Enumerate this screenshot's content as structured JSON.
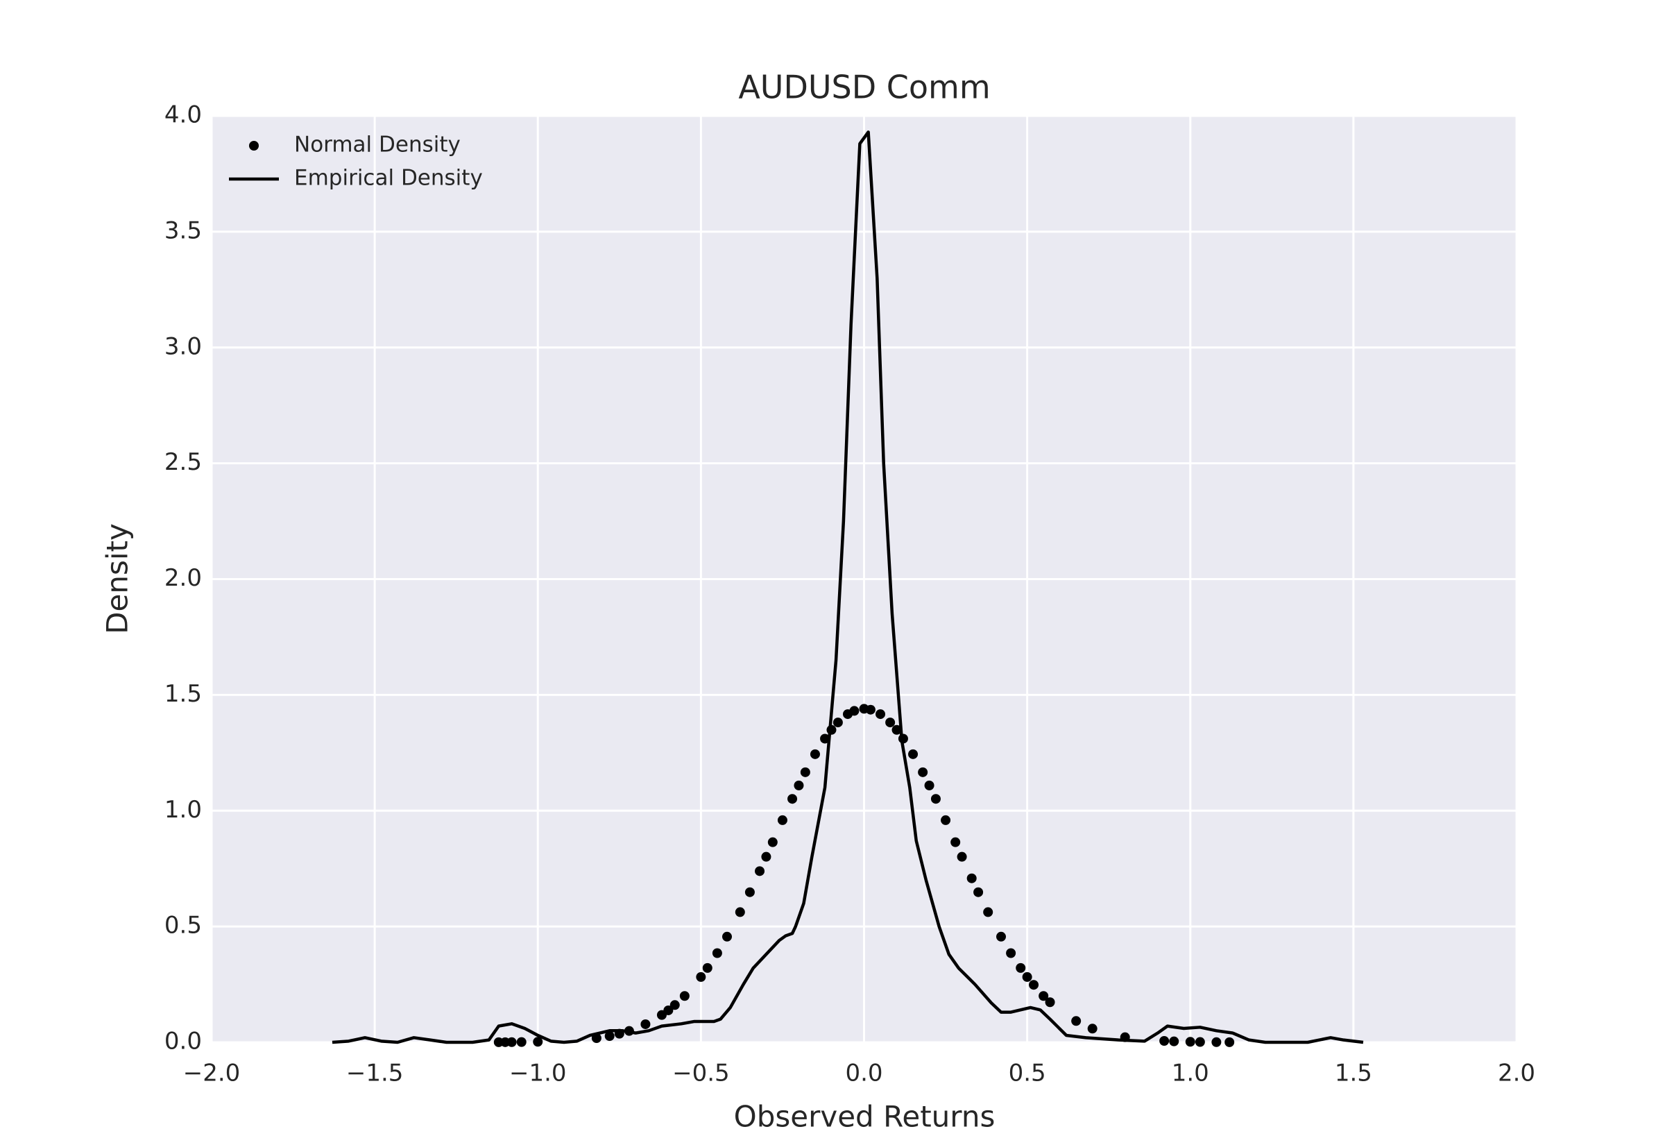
{
  "chart_data": {
    "type": "line",
    "title": "AUDUSD Comm",
    "x_label": "Observed Returns",
    "y_label": "Density",
    "xlim": [
      -2,
      2
    ],
    "ylim": [
      0,
      4
    ],
    "xticks": [
      {
        "value": -2,
        "label": "−2.0"
      },
      {
        "value": -1.5,
        "label": "−1.5"
      },
      {
        "value": -1,
        "label": "−1.0"
      },
      {
        "value": -0.5,
        "label": "−0.5"
      },
      {
        "value": 0,
        "label": "0.0"
      },
      {
        "value": 0.5,
        "label": "0.5"
      },
      {
        "value": 1,
        "label": "1.0"
      },
      {
        "value": 1.5,
        "label": "1.5"
      },
      {
        "value": 2,
        "label": "2.0"
      }
    ],
    "yticks": [
      {
        "value": 0,
        "label": "0.0"
      },
      0.5,
      {
        "value": 1,
        "label": "1.0"
      },
      1.5,
      {
        "value": 2,
        "label": "2.0"
      },
      2.5,
      {
        "value": 3,
        "label": "3.0"
      },
      3.5,
      {
        "value": 4,
        "label": "4.0"
      }
    ],
    "grid": true,
    "legend": "upper left",
    "series": [
      {
        "name": "Normal Density",
        "type": "scatter",
        "color": "#000000",
        "x": [
          -1.12,
          -1.1,
          -1.08,
          -1.05,
          -1.0,
          -0.82,
          -0.78,
          -0.75,
          -0.72,
          -0.67,
          -0.62,
          -0.6,
          -0.58,
          -0.55,
          -0.5,
          -0.48,
          -0.45,
          -0.42,
          -0.38,
          -0.35,
          -0.32,
          -0.3,
          -0.28,
          -0.25,
          -0.22,
          -0.2,
          -0.18,
          -0.15,
          -0.12,
          -0.1,
          -0.08,
          -0.05,
          -0.03,
          0,
          0.02,
          0.05,
          0.08,
          0.1,
          0.12,
          0.15,
          0.18,
          0.2,
          0.22,
          0.25,
          0.28,
          0.3,
          0.33,
          0.35,
          0.38,
          0.42,
          0.45,
          0.48,
          0.5,
          0.52,
          0.55,
          0.57,
          0.65,
          0.7,
          0.8,
          0.92,
          0.95,
          1.0,
          1.03,
          1.08,
          1.12
        ],
        "values": [
          0.0004,
          0.0005,
          0.0007,
          0.0011,
          0.0021,
          0.018,
          0.027,
          0.037,
          0.049,
          0.078,
          0.118,
          0.138,
          0.161,
          0.2,
          0.282,
          0.321,
          0.385,
          0.456,
          0.562,
          0.648,
          0.739,
          0.801,
          0.864,
          0.959,
          1.051,
          1.109,
          1.166,
          1.244,
          1.311,
          1.349,
          1.381,
          1.417,
          1.431,
          1.44,
          1.436,
          1.417,
          1.381,
          1.349,
          1.311,
          1.244,
          1.166,
          1.109,
          1.051,
          0.959,
          0.864,
          0.801,
          0.708,
          0.648,
          0.562,
          0.456,
          0.385,
          0.321,
          0.282,
          0.248,
          0.2,
          0.173,
          0.092,
          0.059,
          0.022,
          0.006,
          0.004,
          0.0021,
          0.0014,
          0.0007,
          0.0004
        ]
      },
      {
        "name": "Empirical Density",
        "type": "line",
        "color": "#000000",
        "x": [
          -1.63,
          -1.58,
          -1.53,
          -1.48,
          -1.43,
          -1.38,
          -1.33,
          -1.28,
          -1.2,
          -1.15,
          -1.12,
          -1.08,
          -1.04,
          -1.0,
          -0.96,
          -0.92,
          -0.88,
          -0.84,
          -0.78,
          -0.74,
          -0.7,
          -0.66,
          -0.62,
          -0.56,
          -0.52,
          -0.46,
          -0.44,
          -0.41,
          -0.37,
          -0.34,
          -0.3,
          -0.26,
          -0.24,
          -0.22,
          -0.21,
          -0.185,
          -0.16,
          -0.12,
          -0.086,
          -0.063,
          -0.04,
          -0.013,
          0.013,
          0.04,
          0.06,
          0.086,
          0.116,
          0.14,
          0.16,
          0.19,
          0.23,
          0.26,
          0.29,
          0.34,
          0.39,
          0.42,
          0.45,
          0.51,
          0.54,
          0.57,
          0.62,
          0.68,
          0.78,
          0.86,
          0.9,
          0.93,
          0.98,
          1.03,
          1.08,
          1.13,
          1.18,
          1.23,
          1.36,
          1.43,
          1.47,
          1.53
        ],
        "values": [
          0,
          0.005,
          0.02,
          0.005,
          0,
          0.02,
          0.01,
          0,
          0,
          0.01,
          0.07,
          0.08,
          0.06,
          0.03,
          0.005,
          0,
          0.005,
          0.03,
          0.05,
          0.05,
          0.04,
          0.05,
          0.07,
          0.08,
          0.09,
          0.09,
          0.1,
          0.15,
          0.25,
          0.32,
          0.38,
          0.44,
          0.46,
          0.47,
          0.5,
          0.6,
          0.8,
          1.1,
          1.65,
          2.25,
          3.1,
          3.88,
          3.93,
          3.3,
          2.5,
          1.85,
          1.3,
          1.1,
          0.87,
          0.7,
          0.5,
          0.38,
          0.32,
          0.25,
          0.17,
          0.13,
          0.13,
          0.15,
          0.14,
          0.1,
          0.03,
          0.02,
          0.01,
          0.005,
          0.04,
          0.07,
          0.06,
          0.065,
          0.05,
          0.04,
          0.01,
          0,
          0,
          0.02,
          0.01,
          0
        ]
      }
    ]
  }
}
